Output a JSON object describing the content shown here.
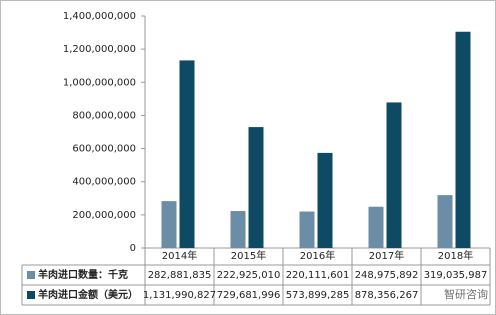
{
  "chart_data": {
    "type": "bar",
    "categories": [
      "2014年",
      "2015年",
      "2016年",
      "2017年",
      "2018年"
    ],
    "series": [
      {
        "name": "羊肉进口数量：千克",
        "color": "#6b8da5",
        "values": [
          282881835,
          222925010,
          220111601,
          248975892,
          319035987
        ],
        "value_labels": [
          "282,881,835",
          "222,925,010",
          "220,111,601",
          "248,975,892",
          "319,035,987"
        ]
      },
      {
        "name": "羊肉进口金额（美元）",
        "color": "#0e4a64",
        "values": [
          1131990827,
          729681996,
          573899285,
          878356267,
          1305000000
        ],
        "value_labels": [
          "1,131,990,827",
          "729,681,996",
          "573,899,285",
          "878,356,267",
          null
        ]
      }
    ],
    "ylim": [
      0,
      1400000000
    ],
    "yticks": [
      0,
      {
        "value": 200000000,
        "label": "200,000,000"
      },
      {
        "value": 400000000,
        "label": "400,000,000"
      },
      {
        "value": 600000000,
        "label": "600,000,000"
      },
      {
        "value": 800000000,
        "label": "800,000,000"
      },
      {
        "value": 1000000000,
        "label": "1,000,000,000"
      },
      {
        "value": 1200000000,
        "label": "1,200,000,000"
      },
      {
        "value": 1400000000,
        "label": "1,400,000,000"
      }
    ],
    "grid": false,
    "watermark": "智研咨询"
  }
}
